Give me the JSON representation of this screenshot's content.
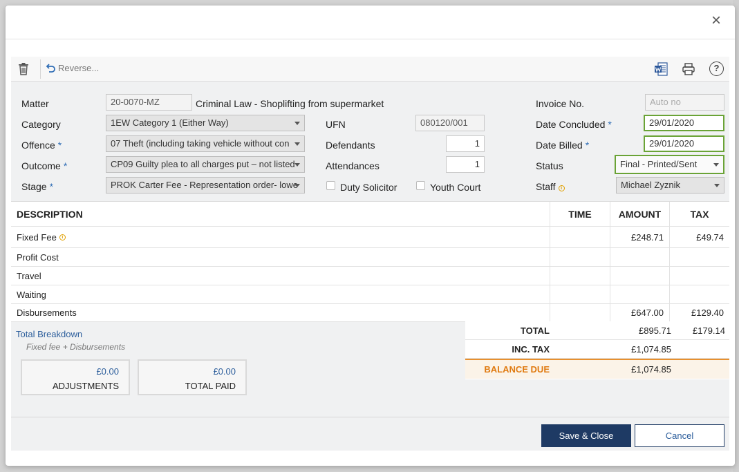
{
  "toolbar": {
    "reverse_label": "Reverse..."
  },
  "form": {
    "matter_label": "Matter",
    "matter_value": "20-0070-MZ",
    "matter_desc": "Criminal Law - Shoplifting from supermarket",
    "category_label": "Category",
    "category_value": "1EW Category 1 (Either Way)",
    "offence_label": "Offence",
    "offence_value": "07 Theft (including taking vehicle without con",
    "outcome_label": "Outcome",
    "outcome_value": "CP09 Guilty plea to all charges put – not listed",
    "stage_label": "Stage",
    "stage_value": "PROK Carter Fee - Representation order- lowe",
    "ufn_label": "UFN",
    "ufn_value": "080120/001",
    "defendants_label": "Defendants",
    "defendants_value": "1",
    "attendances_label": "Attendances",
    "attendances_value": "1",
    "duty_solicitor_label": "Duty Solicitor",
    "youth_court_label": "Youth Court",
    "invoice_no_label": "Invoice No.",
    "invoice_no_placeholder": "Auto no",
    "date_concluded_label": "Date Concluded",
    "date_concluded_value": "29/01/2020",
    "date_billed_label": "Date Billed",
    "date_billed_value": "29/01/2020",
    "status_label": "Status",
    "status_value": "Final - Printed/Sent",
    "staff_label": "Staff",
    "staff_value": "Michael Zyznik",
    "required_mark": "*"
  },
  "table": {
    "headers": {
      "description": "DESCRIPTION",
      "time": "TIME",
      "amount": "AMOUNT",
      "tax": "TAX"
    },
    "rows": [
      {
        "description": "Fixed Fee",
        "time": "",
        "amount": "£248.71",
        "tax": "£49.74"
      },
      {
        "description": "Profit Cost",
        "time": "",
        "amount": "",
        "tax": ""
      },
      {
        "description": "Travel",
        "time": "",
        "amount": "",
        "tax": ""
      },
      {
        "description": "Waiting",
        "time": "",
        "amount": "",
        "tax": ""
      },
      {
        "description": "Disbursements",
        "time": "",
        "amount": "£647.00",
        "tax": "£129.40"
      }
    ]
  },
  "breakdown": {
    "link": "Total Breakdown",
    "sub": "Fixed fee + Disbursements",
    "adjustments_value": "£0.00",
    "adjustments_label": "ADJUSTMENTS",
    "total_paid_value": "£0.00",
    "total_paid_label": "TOTAL PAID"
  },
  "totals": {
    "total_label": "TOTAL",
    "total_amount": "£895.71",
    "total_tax": "£179.14",
    "inc_tax_label": "INC. TAX",
    "inc_tax_amount": "£1,074.85",
    "balance_label": "BALANCE DUE",
    "balance_amount": "£1,074.85"
  },
  "buttons": {
    "save_close": "Save & Close",
    "cancel": "Cancel"
  },
  "colors": {
    "primary": "#1e3a64",
    "highlight_border": "#6aa336",
    "balance_accent": "#e07b12",
    "link": "#2b5d9b"
  },
  "icons": [
    "close-icon",
    "trash-icon",
    "undo-icon",
    "word-icon",
    "print-icon",
    "help-icon",
    "info-icon",
    "chevron-down-icon"
  ]
}
